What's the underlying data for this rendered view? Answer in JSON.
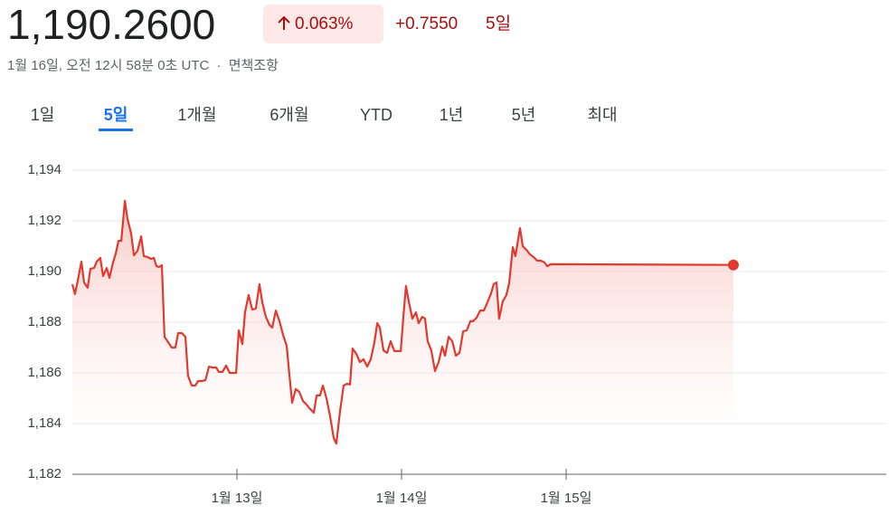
{
  "header": {
    "price": "1,190.2600",
    "change_pct": "0.063%",
    "change": "+0.7550",
    "period": "5일",
    "timestamp": "1월 16일, 오전 12시 58분 0초 UTC",
    "separator": "·",
    "disclaimer": "면책조항"
  },
  "tabs": {
    "items": [
      "1일",
      "5일",
      "1개월",
      "6개월",
      "YTD",
      "1년",
      "5년",
      "최대"
    ],
    "selected": 1
  },
  "chart_data": {
    "type": "line",
    "color": "#e0392e",
    "grid": true,
    "x": [
      0,
      0.016,
      0.033,
      0.055,
      0.071,
      0.093,
      0.11,
      0.132,
      0.148,
      0.17,
      0.187,
      0.209,
      0.225,
      0.247,
      0.264,
      0.28,
      0.297,
      0.319,
      0.335,
      0.357,
      0.374,
      0.396,
      0.418,
      0.434,
      0.456,
      0.478,
      0.495,
      0.511,
      0.527,
      0.544,
      0.56,
      0.582,
      0.604,
      0.626,
      0.643,
      0.665,
      0.687,
      0.703,
      0.725,
      0.747,
      0.764,
      0.786,
      0.808,
      0.83,
      0.852,
      0.874,
      0.89,
      0.912,
      0.934,
      0.956,
      0.978,
      0.995,
      1.011,
      1.033,
      1.049,
      1.071,
      1.093,
      1.115,
      1.137,
      1.154,
      1.176,
      1.198,
      1.214,
      1.236,
      1.258,
      1.28,
      1.302,
      1.319,
      1.335,
      1.357,
      1.379,
      1.401,
      1.423,
      1.445,
      1.467,
      1.484,
      1.505,
      1.522,
      1.544,
      1.566,
      1.588,
      1.604,
      1.626,
      1.648,
      1.67,
      1.687,
      1.703,
      1.725,
      1.747,
      1.769,
      1.791,
      1.813,
      1.835,
      1.852,
      1.868,
      1.89,
      1.912,
      1.934,
      1.956,
      1.978,
      1.995,
      2.011,
      2.027,
      2.044,
      2.066,
      2.088,
      2.104,
      2.126,
      2.143,
      2.159,
      2.181,
      2.203,
      2.225,
      2.247,
      2.264,
      2.286,
      2.308,
      2.33,
      2.352,
      2.374,
      2.396,
      2.418,
      2.434,
      2.456,
      2.478,
      2.5,
      2.522,
      2.544,
      2.56,
      2.577,
      2.593,
      2.615,
      2.637,
      2.654,
      2.676,
      2.692,
      2.72,
      2.736,
      2.758,
      2.78,
      2.802,
      2.824,
      2.846,
      2.868,
      2.885,
      2.907,
      4.016
    ],
    "values": [
      1189.5,
      1189.11,
      1189.64,
      1190.39,
      1189.57,
      1189.36,
      1190.11,
      1190.14,
      1190.39,
      1190.54,
      1189.82,
      1190.14,
      1189.75,
      1190.36,
      1190.71,
      1191.21,
      1191.21,
      1192.79,
      1192.07,
      1191.5,
      1190.64,
      1190.82,
      1191.39,
      1190.61,
      1190.57,
      1190.5,
      1190.54,
      1190.21,
      1190.18,
      1190.25,
      1187.43,
      1187.21,
      1187,
      1187,
      1187.57,
      1187.57,
      1187.43,
      1185.89,
      1185.5,
      1185.5,
      1185.68,
      1185.68,
      1185.71,
      1186.25,
      1186.21,
      1186.21,
      1186.04,
      1186.04,
      1186.29,
      1186,
      1186,
      1186,
      1187.68,
      1187.14,
      1188.39,
      1189.07,
      1188.5,
      1188.54,
      1189.5,
      1188.79,
      1188.21,
      1187.89,
      1187.79,
      1188.46,
      1188.04,
      1187.5,
      1187.07,
      1185.89,
      1184.82,
      1185.36,
      1185.25,
      1184.89,
      1184.75,
      1184.57,
      1184.43,
      1185.11,
      1185.11,
      1185.5,
      1185,
      1184.29,
      1183.43,
      1183.21,
      1184.46,
      1185.5,
      1185.57,
      1185.54,
      1186.96,
      1186.75,
      1186.43,
      1186.54,
      1186.25,
      1186.54,
      1187.21,
      1187.96,
      1187.79,
      1186.89,
      1186.79,
      1187.25,
      1186.86,
      1186.86,
      1186.86,
      1188.21,
      1189.43,
      1188.82,
      1188.14,
      1188.39,
      1187.96,
      1188.21,
      1188.14,
      1187.25,
      1186.89,
      1186.07,
      1186.43,
      1187.04,
      1186.68,
      1187.43,
      1187.25,
      1186.68,
      1186.79,
      1187.64,
      1187.68,
      1188.04,
      1188.04,
      1188.18,
      1188.46,
      1188.46,
      1188.79,
      1189.14,
      1189.5,
      1189.57,
      1188.14,
      1188.82,
      1189.07,
      1189.54,
      1190.96,
      1190.61,
      1191.71,
      1191,
      1190.86,
      1190.68,
      1190.57,
      1190.43,
      1190.43,
      1190.36,
      1190.21,
      1190.29,
      1190.26
    ],
    "xlim": [
      0,
      4.945
    ],
    "xticks": [
      {
        "value": 1,
        "label": "1월 13일"
      },
      {
        "value": 2,
        "label": "1월 14일"
      },
      {
        "value": 3,
        "label": "1월 15일"
      }
    ],
    "ylim": [
      1182,
      1194
    ],
    "yticks": [
      {
        "value": 1182,
        "label": "1,182"
      },
      {
        "value": 1184,
        "label": "1,184"
      },
      {
        "value": 1186,
        "label": "1,186"
      },
      {
        "value": 1188,
        "label": "1,188"
      },
      {
        "value": 1190,
        "label": "1,190"
      },
      {
        "value": 1192,
        "label": "1,192"
      },
      {
        "value": 1194,
        "label": "1,194"
      }
    ]
  }
}
